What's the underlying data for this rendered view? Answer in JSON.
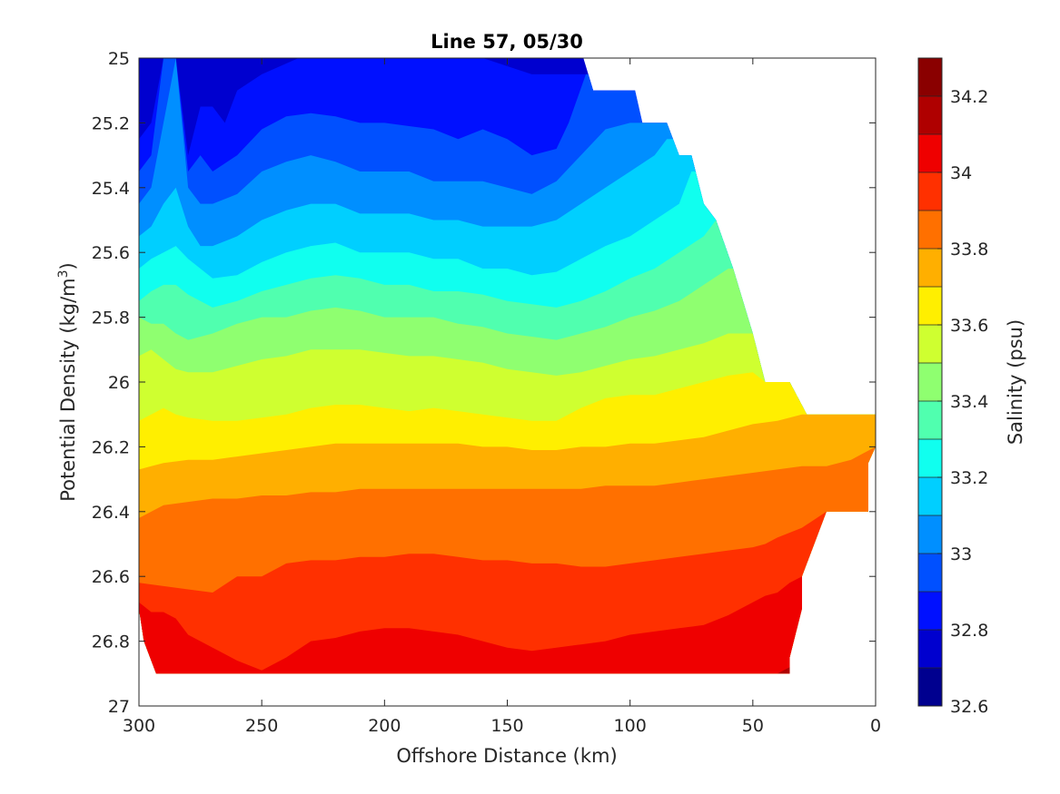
{
  "chart_data": {
    "type": "heatmap",
    "subtype": "filled-contour",
    "title": "Line 57, 05/30",
    "xlabel": "Offshore Distance (km)",
    "ylabel": "Potential Density (kg/m",
    "ylabel_sup": "3",
    "ylabel_close": ")",
    "x_reversed": true,
    "y_reversed": true,
    "xlim": [
      0,
      300
    ],
    "ylim": [
      25,
      27
    ],
    "x_ticks": [
      "300",
      "250",
      "200",
      "150",
      "100",
      "50",
      "0"
    ],
    "y_ticks": [
      "25",
      "25.2",
      "25.4",
      "25.6",
      "25.8",
      "26",
      "26.2",
      "26.4",
      "26.6",
      "26.8",
      "27"
    ],
    "colorbar": {
      "label": "Salinity (psu)",
      "range": [
        32.6,
        34.3
      ],
      "levels": [
        32.6,
        32.7,
        32.8,
        32.9,
        33.0,
        33.1,
        33.2,
        33.3,
        33.4,
        33.5,
        33.6,
        33.7,
        33.8,
        33.9,
        34.0,
        34.1,
        34.2,
        34.3
      ],
      "tick_labels": [
        "32.6",
        "32.8",
        "33",
        "33.2",
        "33.4",
        "33.6",
        "33.8",
        "34",
        "34.2"
      ],
      "colormap": "jet",
      "band_colors": [
        "#00008f",
        "#0000cf",
        "#0010ff",
        "#0050ff",
        "#008fff",
        "#00cfff",
        "#10ffef",
        "#50ffaf",
        "#8fff70",
        "#cfff30",
        "#ffef00",
        "#ffaf00",
        "#ff7000",
        "#ff3000",
        "#ef0000",
        "#af0000",
        "#8a0000"
      ]
    },
    "data_boundary": {
      "x_km": [
        300,
        300,
        119,
        115,
        98,
        95,
        85,
        80,
        75,
        70,
        65,
        58,
        50,
        45,
        35,
        28,
        20,
        0,
        0,
        3,
        3,
        20,
        30,
        30,
        35,
        35,
        40,
        50,
        293,
        298,
        300
      ],
      "density": [
        26.9,
        25.0,
        25.0,
        25.1,
        25.1,
        25.2,
        25.2,
        25.3,
        25.3,
        25.45,
        25.5,
        25.65,
        25.85,
        26.0,
        26.0,
        26.1,
        26.1,
        26.1,
        26.2,
        26.25,
        26.4,
        26.4,
        26.6,
        26.7,
        26.85,
        26.9,
        26.9,
        26.9,
        26.9,
        26.8,
        26.7
      ]
    },
    "bands": [
      {
        "level": 32.8,
        "x_km": [
          300,
          295,
          290,
          285,
          280,
          275,
          270,
          265,
          260,
          250,
          235,
          220,
          200,
          180,
          160,
          140,
          128,
          118
        ],
        "density": [
          25.25,
          25.2,
          25.0,
          25.0,
          25.3,
          25.15,
          25.15,
          25.2,
          25.1,
          25.05,
          25.0,
          25.0,
          25.0,
          25.0,
          25.0,
          25.05,
          25.05,
          25.05
        ]
      },
      {
        "level": 32.9,
        "x_km": [
          300,
          295,
          290,
          285,
          280,
          275,
          270,
          260,
          250,
          240,
          230,
          220,
          210,
          200,
          190,
          180,
          170,
          160,
          150,
          140,
          130,
          125,
          118
        ],
        "density": [
          25.35,
          25.3,
          25.0,
          25.0,
          25.35,
          25.3,
          25.35,
          25.3,
          25.22,
          25.18,
          25.17,
          25.18,
          25.2,
          25.2,
          25.21,
          25.22,
          25.25,
          25.22,
          25.25,
          25.3,
          25.28,
          25.2,
          25.05
        ]
      },
      {
        "level": 33.0,
        "x_km": [
          300,
          295,
          290,
          285,
          280,
          275,
          270,
          260,
          250,
          240,
          230,
          220,
          210,
          200,
          190,
          180,
          170,
          160,
          150,
          140,
          130,
          120,
          110,
          100,
          95
        ],
        "density": [
          25.45,
          25.4,
          25.2,
          25.0,
          25.4,
          25.45,
          25.45,
          25.42,
          25.35,
          25.32,
          25.3,
          25.32,
          25.35,
          25.35,
          25.35,
          25.38,
          25.38,
          25.38,
          25.4,
          25.42,
          25.38,
          25.3,
          25.22,
          25.2,
          25.2
        ]
      },
      {
        "level": 33.1,
        "x_km": [
          300,
          295,
          290,
          285,
          280,
          275,
          270,
          260,
          250,
          240,
          230,
          220,
          210,
          200,
          190,
          180,
          170,
          160,
          150,
          140,
          130,
          120,
          110,
          100,
          90,
          85,
          80
        ],
        "density": [
          25.55,
          25.52,
          25.45,
          25.4,
          25.52,
          25.58,
          25.58,
          25.55,
          25.5,
          25.47,
          25.45,
          25.45,
          25.48,
          25.48,
          25.48,
          25.5,
          25.5,
          25.52,
          25.52,
          25.52,
          25.5,
          25.45,
          25.4,
          25.35,
          25.3,
          25.25,
          25.25
        ]
      },
      {
        "level": 33.2,
        "x_km": [
          300,
          295,
          290,
          285,
          280,
          275,
          270,
          260,
          250,
          240,
          230,
          220,
          210,
          200,
          190,
          180,
          170,
          160,
          150,
          140,
          130,
          120,
          110,
          100,
          90,
          80,
          75
        ],
        "density": [
          25.65,
          25.62,
          25.6,
          25.58,
          25.62,
          25.65,
          25.68,
          25.67,
          25.63,
          25.6,
          25.58,
          25.57,
          25.6,
          25.6,
          25.6,
          25.62,
          25.62,
          25.65,
          25.65,
          25.67,
          25.66,
          25.62,
          25.58,
          25.55,
          25.5,
          25.45,
          25.35
        ]
      },
      {
        "level": 33.3,
        "x_km": [
          300,
          295,
          290,
          285,
          280,
          270,
          260,
          250,
          240,
          230,
          220,
          210,
          200,
          190,
          180,
          170,
          160,
          150,
          140,
          130,
          120,
          110,
          100,
          90,
          80,
          70,
          65
        ],
        "density": [
          25.75,
          25.72,
          25.7,
          25.7,
          25.73,
          25.77,
          25.75,
          25.72,
          25.7,
          25.68,
          25.67,
          25.68,
          25.7,
          25.7,
          25.72,
          25.72,
          25.73,
          25.75,
          25.76,
          25.77,
          25.75,
          25.72,
          25.68,
          25.65,
          25.6,
          25.55,
          25.5
        ]
      },
      {
        "level": 33.4,
        "x_km": [
          300,
          295,
          290,
          285,
          280,
          270,
          260,
          250,
          240,
          230,
          220,
          210,
          200,
          190,
          180,
          170,
          160,
          150,
          140,
          130,
          120,
          110,
          100,
          90,
          80,
          70,
          60,
          58
        ],
        "density": [
          25.8,
          25.82,
          25.82,
          25.85,
          25.87,
          25.85,
          25.82,
          25.8,
          25.8,
          25.78,
          25.77,
          25.78,
          25.8,
          25.8,
          25.8,
          25.82,
          25.83,
          25.85,
          25.86,
          25.87,
          25.85,
          25.83,
          25.8,
          25.78,
          25.75,
          25.7,
          25.65,
          25.65
        ]
      },
      {
        "level": 33.5,
        "x_km": [
          300,
          295,
          290,
          285,
          280,
          270,
          260,
          250,
          240,
          230,
          220,
          210,
          200,
          190,
          180,
          170,
          160,
          150,
          140,
          130,
          120,
          110,
          100,
          90,
          80,
          70,
          60,
          50
        ],
        "density": [
          25.92,
          25.9,
          25.93,
          25.96,
          25.97,
          25.97,
          25.95,
          25.93,
          25.92,
          25.9,
          25.9,
          25.9,
          25.91,
          25.92,
          25.92,
          25.93,
          25.94,
          25.96,
          25.97,
          25.98,
          25.97,
          25.95,
          25.93,
          25.92,
          25.9,
          25.88,
          25.85,
          25.85
        ]
      },
      {
        "level": 33.6,
        "x_km": [
          300,
          295,
          290,
          285,
          280,
          270,
          260,
          250,
          240,
          230,
          220,
          210,
          200,
          190,
          180,
          170,
          160,
          150,
          140,
          130,
          120,
          110,
          100,
          90,
          80,
          70,
          60,
          50,
          45
        ],
        "density": [
          26.12,
          26.1,
          26.08,
          26.1,
          26.11,
          26.12,
          26.12,
          26.11,
          26.1,
          26.08,
          26.07,
          26.07,
          26.08,
          26.09,
          26.08,
          26.09,
          26.1,
          26.11,
          26.12,
          26.12,
          26.08,
          26.05,
          26.04,
          26.04,
          26.02,
          26.0,
          25.98,
          25.97,
          26.0
        ]
      },
      {
        "level": 33.7,
        "x_km": [
          300,
          295,
          290,
          280,
          270,
          260,
          250,
          240,
          230,
          220,
          210,
          200,
          190,
          180,
          170,
          160,
          150,
          140,
          130,
          120,
          110,
          100,
          90,
          80,
          70,
          60,
          50,
          40,
          35,
          30
        ],
        "density": [
          26.27,
          26.26,
          26.25,
          26.24,
          26.24,
          26.23,
          26.22,
          26.21,
          26.2,
          26.19,
          26.19,
          26.19,
          26.19,
          26.19,
          26.19,
          26.2,
          26.2,
          26.21,
          26.21,
          26.2,
          26.2,
          26.19,
          26.19,
          26.18,
          26.17,
          26.15,
          26.13,
          26.12,
          26.11,
          26.1
        ]
      },
      {
        "level": 33.8,
        "x_km": [
          300,
          290,
          280,
          270,
          260,
          250,
          240,
          230,
          220,
          210,
          200,
          190,
          180,
          170,
          160,
          150,
          140,
          130,
          120,
          110,
          100,
          90,
          80,
          70,
          60,
          50,
          40,
          30,
          20,
          10,
          5,
          0
        ],
        "density": [
          26.42,
          26.38,
          26.37,
          26.36,
          26.36,
          26.35,
          26.35,
          26.34,
          26.34,
          26.33,
          26.33,
          26.33,
          26.33,
          26.33,
          26.33,
          26.33,
          26.33,
          26.33,
          26.33,
          26.32,
          26.32,
          26.32,
          26.31,
          26.3,
          26.29,
          26.28,
          26.27,
          26.26,
          26.26,
          26.24,
          26.22,
          26.2
        ]
      },
      {
        "level": 33.9,
        "x_km": [
          300,
          290,
          280,
          270,
          260,
          250,
          245,
          240,
          230,
          220,
          210,
          200,
          190,
          180,
          170,
          160,
          150,
          140,
          130,
          120,
          110,
          100,
          90,
          80,
          70,
          60,
          50,
          45,
          40,
          30,
          20
        ],
        "density": [
          26.62,
          26.63,
          26.64,
          26.65,
          26.6,
          26.6,
          26.58,
          26.56,
          26.55,
          26.55,
          26.54,
          26.54,
          26.53,
          26.53,
          26.54,
          26.55,
          26.55,
          26.56,
          26.56,
          26.57,
          26.57,
          26.56,
          26.55,
          26.54,
          26.53,
          26.52,
          26.51,
          26.5,
          26.48,
          26.45,
          26.4
        ]
      },
      {
        "level": 34.0,
        "x_km": [
          300,
          295,
          290,
          285,
          280,
          270,
          260,
          250,
          240,
          230,
          220,
          210,
          200,
          190,
          180,
          170,
          160,
          150,
          140,
          130,
          120,
          110,
          100,
          90,
          80,
          70,
          60,
          50,
          45,
          40,
          35,
          30
        ],
        "density": [
          26.68,
          26.71,
          26.71,
          26.73,
          26.78,
          26.82,
          26.86,
          26.89,
          26.85,
          26.8,
          26.79,
          26.77,
          26.76,
          26.76,
          26.77,
          26.78,
          26.8,
          26.82,
          26.83,
          26.82,
          26.81,
          26.8,
          26.78,
          26.77,
          26.76,
          26.75,
          26.72,
          26.68,
          26.66,
          26.65,
          26.62,
          26.6
        ]
      },
      {
        "level": 34.1,
        "x_km": [
          300,
          298,
          295,
          293,
          290,
          285,
          280,
          270,
          260,
          250,
          240,
          230,
          220,
          210,
          200,
          190,
          180,
          170,
          160,
          150,
          140,
          130,
          120,
          110,
          100,
          90,
          80,
          70,
          60,
          50,
          40,
          35,
          30
        ],
        "density": [
          26.9,
          26.9,
          26.9,
          26.9,
          26.9,
          26.9,
          26.9,
          26.9,
          26.9,
          26.9,
          26.9,
          26.9,
          26.9,
          26.9,
          26.9,
          26.9,
          26.9,
          26.9,
          26.9,
          26.9,
          26.9,
          26.9,
          26.9,
          26.9,
          26.9,
          26.9,
          26.9,
          26.9,
          26.9,
          26.9,
          26.9,
          26.88,
          26.87
        ]
      }
    ]
  }
}
